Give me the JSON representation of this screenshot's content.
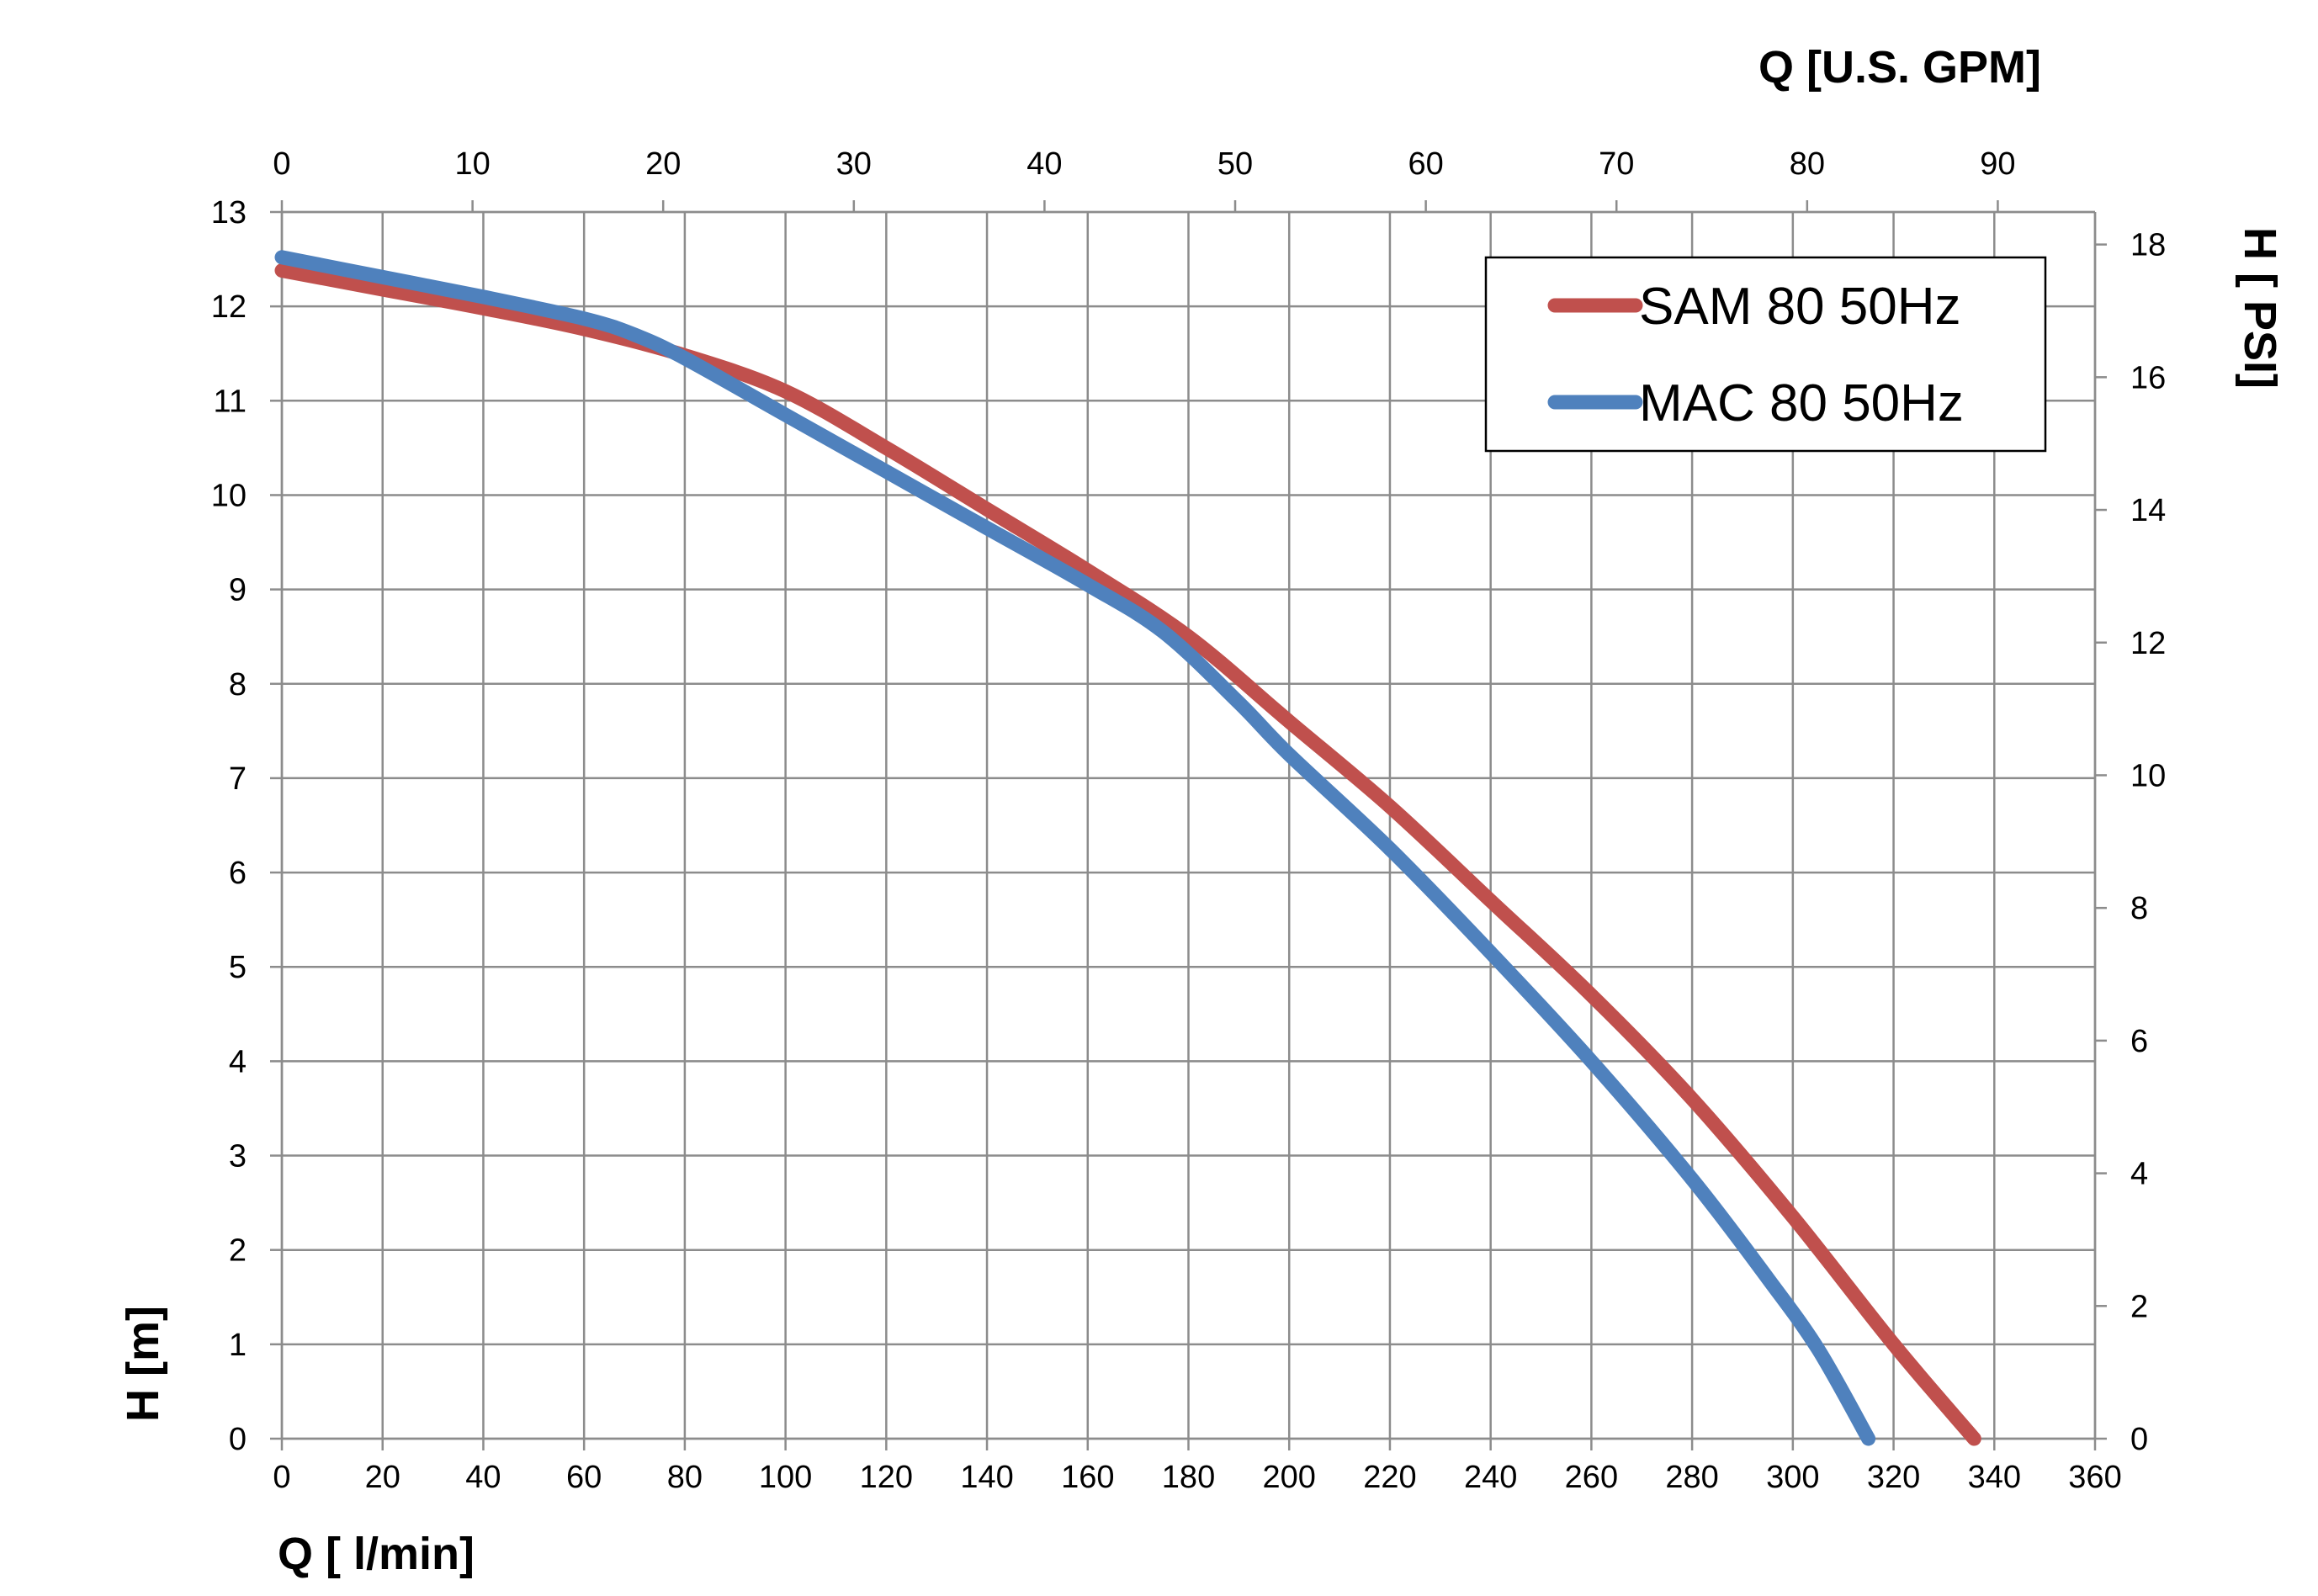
{
  "chart_data": {
    "type": "line",
    "x_primary": {
      "label": "Q [ l/min]",
      "range": [
        0,
        360
      ],
      "ticks": [
        0,
        20,
        40,
        60,
        80,
        100,
        120,
        140,
        160,
        180,
        200,
        220,
        240,
        260,
        280,
        300,
        320,
        340,
        360
      ]
    },
    "x_secondary": {
      "label": "Q  [U.S. GPM]",
      "range": [
        0,
        95.1
      ],
      "ticks": [
        0,
        10,
        20,
        30,
        40,
        50,
        60,
        70,
        80,
        90
      ]
    },
    "y_primary": {
      "label": "H [m]",
      "range": [
        0,
        13
      ],
      "ticks": [
        0,
        1,
        2,
        3,
        4,
        5,
        6,
        7,
        8,
        9,
        10,
        11,
        12,
        13
      ]
    },
    "y_secondary": {
      "label": "H [ PSI]",
      "range": [
        0,
        18.49
      ],
      "ticks": [
        0,
        2,
        4,
        6,
        8,
        10,
        12,
        14,
        16,
        18
      ]
    },
    "grid": true,
    "legend_position": "top-right",
    "series": [
      {
        "name": "SAM 80 50Hz",
        "color": "#c0504d",
        "x": [
          0,
          20,
          40,
          60,
          80,
          100,
          120,
          140,
          160,
          180,
          200,
          220,
          240,
          260,
          280,
          300,
          320,
          336
        ],
        "y": [
          12.38,
          12.18,
          11.98,
          11.76,
          11.48,
          11.1,
          10.5,
          9.85,
          9.2,
          8.5,
          7.6,
          6.7,
          5.7,
          4.7,
          3.6,
          2.35,
          1.0,
          0
        ]
      },
      {
        "name": "MAC 80 50Hz",
        "color": "#4f81bd",
        "x": [
          0,
          20,
          40,
          60,
          70,
          80,
          100,
          120,
          140,
          160,
          175,
          190,
          200,
          220,
          240,
          260,
          280,
          295,
          305,
          315
        ],
        "y": [
          12.52,
          12.31,
          12.1,
          11.87,
          11.7,
          11.45,
          10.85,
          10.25,
          9.65,
          9.05,
          8.55,
          7.8,
          7.25,
          6.25,
          5.15,
          4.0,
          2.75,
          1.7,
          0.95,
          0
        ]
      }
    ]
  }
}
